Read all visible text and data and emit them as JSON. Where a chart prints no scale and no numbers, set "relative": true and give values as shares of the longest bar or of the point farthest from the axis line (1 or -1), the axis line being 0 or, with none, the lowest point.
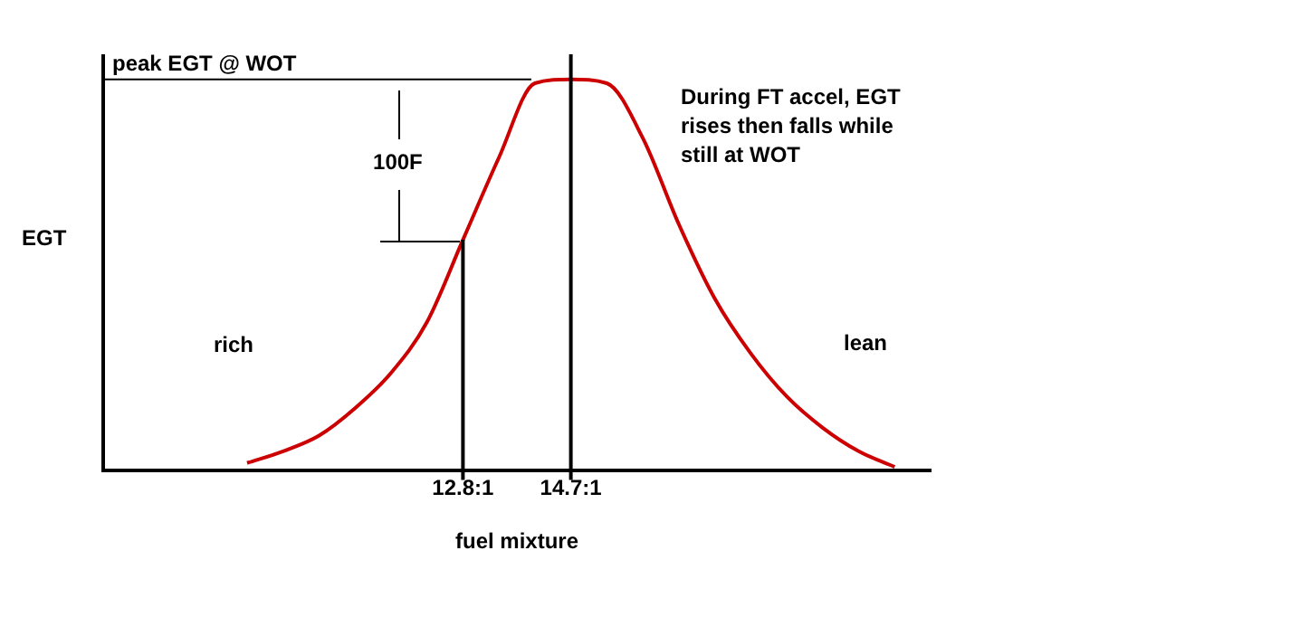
{
  "chart_data": {
    "type": "line",
    "relative": true,
    "xlabel": "fuel mixture",
    "ylabel": "EGT",
    "categories": [
      null,
      null,
      null,
      null,
      null,
      null,
      null,
      null,
      null,
      null,
      "12.8:1",
      null,
      null,
      "14.7:1",
      null,
      null,
      null,
      null,
      null,
      null,
      null,
      null,
      null,
      null
    ],
    "series": [
      {
        "color": "#cc0000",
        "values": [
          null,
          null,
          null,
          null,
          0.02,
          0.05,
          0.09,
          0.16,
          0.25,
          0.38,
          0.59,
          0.8,
          0.99,
          1,
          0.99,
          0.85,
          0.63,
          0.44,
          0.3,
          0.19,
          0.11,
          0.05,
          0.01,
          null
        ]
      }
    ],
    "ref_lines": [
      {
        "axis": "x",
        "value": "12.8:1",
        "color": "#000000"
      },
      {
        "axis": "x",
        "value": "14.7:1",
        "color": "#000000"
      },
      {
        "axis": "y",
        "value": 1,
        "label": "peak EGT @ WOT",
        "color": "#000000"
      }
    ],
    "annotations": [
      "rich",
      "lean",
      "100F",
      "During FT accel, EGT rises then falls while still at WOT"
    ],
    "grid": false,
    "legend": false,
    "marker": "none",
    "line_style": "solid"
  }
}
